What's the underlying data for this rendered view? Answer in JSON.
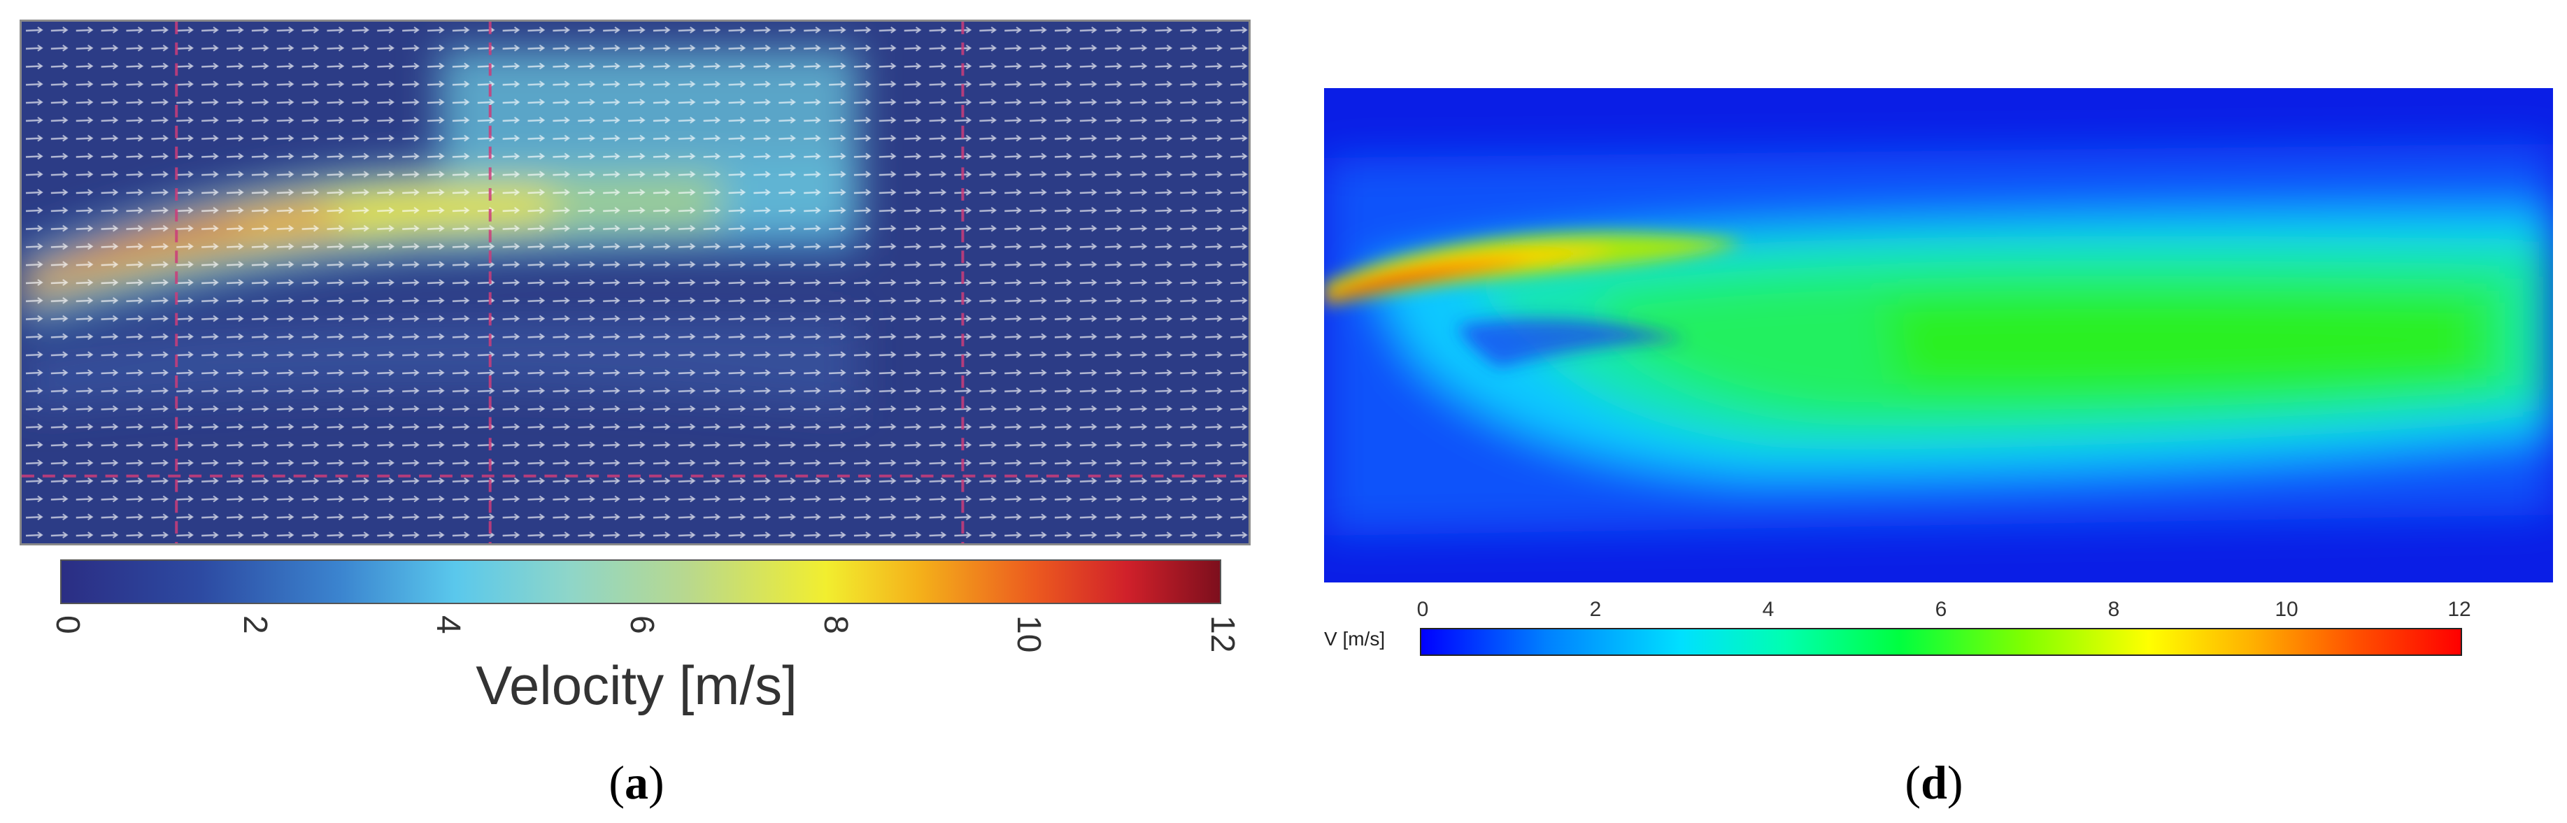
{
  "panel_a": {
    "colorbar_ticks": [
      "0",
      "2",
      "4",
      "6",
      "8",
      "10",
      "12"
    ],
    "colorbar_label": "Velocity [m/s]",
    "caption_letter": "a"
  },
  "panel_d": {
    "axis_ticks": [
      "0",
      "2",
      "4",
      "6",
      "8",
      "10",
      "12"
    ],
    "colorbar_label": "V [m/s]",
    "caption_letter": "d"
  },
  "colors": {
    "piv_background": "#2c3c86",
    "cfd_background": "#0a1ee6",
    "grid_line": "#cc3d7a"
  }
}
